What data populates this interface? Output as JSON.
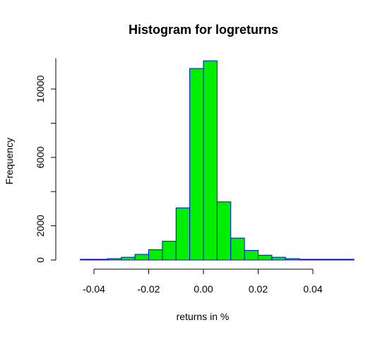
{
  "chart_data": {
    "type": "bar",
    "title": "Histogram for logreturns",
    "xlabel": "returns in %",
    "ylabel": "Frequency",
    "xlim": [
      -0.05,
      0.055
    ],
    "ylim": [
      0,
      12000
    ],
    "bin_width": 0.005,
    "x_ticks": [
      -0.04,
      -0.02,
      0.0,
      0.02,
      0.04
    ],
    "x_tick_labels": [
      "-0.04",
      "-0.02",
      "0.00",
      "0.02",
      "0.04"
    ],
    "y_ticks": [
      0,
      2000,
      6000,
      10000
    ],
    "y_tick_labels": [
      "0",
      "2000",
      "6000",
      "10000"
    ],
    "bins": [
      {
        "start": -0.045,
        "end": -0.04,
        "count": 30
      },
      {
        "start": -0.04,
        "end": -0.035,
        "count": 40
      },
      {
        "start": -0.035,
        "end": -0.03,
        "count": 80
      },
      {
        "start": -0.03,
        "end": -0.025,
        "count": 160
      },
      {
        "start": -0.025,
        "end": -0.02,
        "count": 330
      },
      {
        "start": -0.02,
        "end": -0.015,
        "count": 600
      },
      {
        "start": -0.015,
        "end": -0.01,
        "count": 1100
      },
      {
        "start": -0.01,
        "end": -0.005,
        "count": 3050
      },
      {
        "start": -0.005,
        "end": 0.0,
        "count": 11200
      },
      {
        "start": 0.0,
        "end": 0.005,
        "count": 11650
      },
      {
        "start": 0.005,
        "end": 0.01,
        "count": 3400
      },
      {
        "start": 0.01,
        "end": 0.015,
        "count": 1280
      },
      {
        "start": 0.015,
        "end": 0.02,
        "count": 560
      },
      {
        "start": 0.02,
        "end": 0.025,
        "count": 280
      },
      {
        "start": 0.025,
        "end": 0.03,
        "count": 160
      },
      {
        "start": 0.03,
        "end": 0.035,
        "count": 80
      },
      {
        "start": 0.035,
        "end": 0.04,
        "count": 40
      },
      {
        "start": 0.04,
        "end": 0.045,
        "count": 20
      },
      {
        "start": 0.045,
        "end": 0.05,
        "count": 10
      },
      {
        "start": 0.05,
        "end": 0.055,
        "count": 5
      }
    ],
    "colors": {
      "bar_fill": "#00ee00",
      "bar_border": "#0000ff"
    },
    "grid": false,
    "legend": "none"
  }
}
